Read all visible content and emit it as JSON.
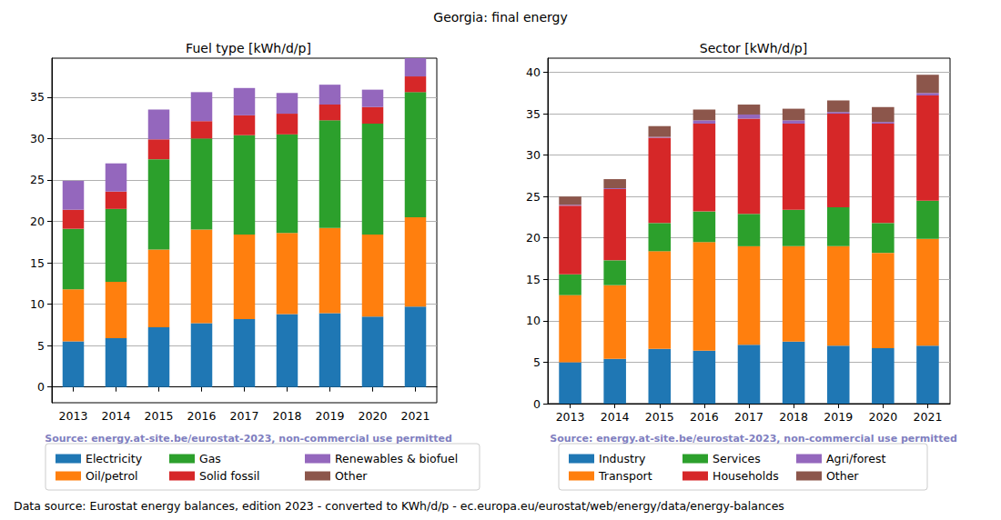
{
  "title": "Georgia: final energy",
  "footer": "Data source: Eurostat energy balances, edition 2023 - converted to KWh/d/p - ec.europa.eu/eurostat/web/energy/data/energy-balances",
  "chart_data": [
    {
      "type": "bar",
      "title": "Fuel type [kWh/d/p]",
      "annotation": "Source: energy.at-site.be/eurostat-2023, non-commercial use permitted",
      "stacked": true,
      "grid": true,
      "legend": "bottom",
      "categories": [
        "2013",
        "2014",
        "2015",
        "2016",
        "2017",
        "2018",
        "2019",
        "2020",
        "2021"
      ],
      "ylim": [
        -1.9,
        39.7
      ],
      "yticks": [
        0,
        5,
        10,
        15,
        20,
        25,
        30,
        35
      ],
      "series": [
        {
          "name": "Electricity",
          "color": "#1f77b4",
          "values": [
            5.5,
            5.9,
            7.2,
            7.7,
            8.2,
            8.8,
            8.9,
            8.5,
            9.7
          ]
        },
        {
          "name": "Oil/petrol",
          "color": "#ff7f0e",
          "values": [
            6.3,
            6.8,
            9.4,
            11.3,
            10.2,
            9.8,
            10.3,
            9.9,
            10.8
          ]
        },
        {
          "name": "Gas",
          "color": "#2ca02c",
          "values": [
            7.3,
            8.8,
            10.9,
            11.0,
            12.0,
            11.9,
            13.0,
            13.4,
            15.1
          ]
        },
        {
          "name": "Solid fossil",
          "color": "#d62728",
          "values": [
            2.3,
            2.1,
            2.4,
            2.1,
            2.4,
            2.5,
            1.9,
            2.0,
            1.9
          ]
        },
        {
          "name": "Renewables & biofuel",
          "color": "#9467bd",
          "values": [
            3.5,
            3.4,
            3.6,
            3.5,
            3.3,
            2.5,
            2.4,
            2.1,
            2.2
          ]
        },
        {
          "name": "Other",
          "color": "#8c564b",
          "values": [
            0,
            0,
            0,
            0,
            0,
            0,
            0,
            0,
            0
          ]
        }
      ]
    },
    {
      "type": "bar",
      "title": "Sector [kWh/d/p]",
      "annotation": "Source: energy.at-site.be/eurostat-2023, non-commercial use permitted",
      "stacked": true,
      "grid": true,
      "legend": "bottom",
      "categories": [
        "2013",
        "2014",
        "2015",
        "2016",
        "2017",
        "2018",
        "2019",
        "2020",
        "2021"
      ],
      "ylim": [
        0,
        41.7
      ],
      "yticks": [
        0,
        5,
        10,
        15,
        20,
        25,
        30,
        35,
        40
      ],
      "series": [
        {
          "name": "Industry",
          "color": "#1f77b4",
          "values": [
            5.0,
            5.4,
            6.6,
            6.4,
            7.1,
            7.5,
            7.0,
            6.7,
            7.0
          ]
        },
        {
          "name": "Transport",
          "color": "#ff7f0e",
          "values": [
            8.1,
            8.9,
            11.8,
            13.1,
            11.9,
            11.5,
            12.0,
            11.5,
            12.9
          ]
        },
        {
          "name": "Services",
          "color": "#2ca02c",
          "values": [
            2.5,
            3.0,
            3.4,
            3.7,
            3.9,
            4.4,
            4.7,
            3.6,
            4.6
          ]
        },
        {
          "name": "Households",
          "color": "#d62728",
          "values": [
            8.3,
            8.6,
            10.3,
            10.6,
            11.5,
            10.4,
            11.3,
            12.0,
            12.7
          ]
        },
        {
          "name": "Agri/forest",
          "color": "#9467bd",
          "values": [
            0.1,
            0.1,
            0.1,
            0.4,
            0.5,
            0.4,
            0.2,
            0.2,
            0.3
          ]
        },
        {
          "name": "Other",
          "color": "#8c564b",
          "values": [
            1.0,
            1.1,
            1.3,
            1.3,
            1.2,
            1.4,
            1.4,
            1.8,
            2.2
          ]
        }
      ]
    }
  ]
}
